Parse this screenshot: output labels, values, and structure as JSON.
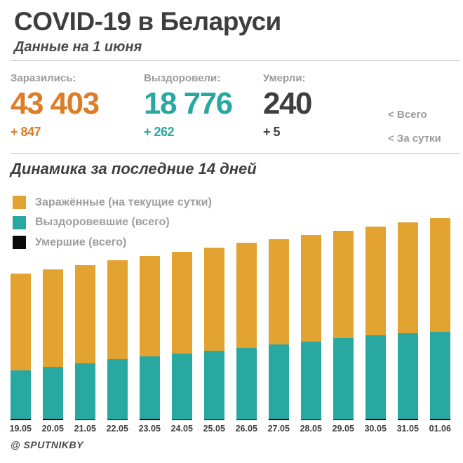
{
  "header": {
    "title": "COVID-19 в Беларуси",
    "subtitle": "Данные на 1 июня"
  },
  "stats": {
    "infected": {
      "label": "Заразились:",
      "total": "43 403",
      "delta": "+ 847",
      "color": "#dd7d28"
    },
    "recovered": {
      "label": "Выздоровели:",
      "total": "18 776",
      "delta": "+ 262",
      "color": "#28a8a1"
    },
    "died": {
      "label": "Умерли:",
      "total": "240",
      "delta": "+ 5",
      "color": "#3f3f3f"
    },
    "row_hints": {
      "total": "<  Всего",
      "daily": "<  За сутки"
    }
  },
  "section": {
    "title": "Динамика за последние 14 дней"
  },
  "legend": [
    {
      "label": "Заражённые (на текущие сутки)",
      "color": "#e2a331"
    },
    {
      "label": "Выздоровевшие (всего)",
      "color": "#28a8a1"
    },
    {
      "label": "Умершие (всего)",
      "color": "#0a0a0a"
    }
  ],
  "chart_data": {
    "type": "bar",
    "subtype": "stacked",
    "title": "Динамика за последние 14 дней",
    "xlabel": "",
    "ylabel": "",
    "grid": false,
    "legend_position": "top-left",
    "ylim": [
      0,
      43403
    ],
    "categories": [
      "19.05",
      "20.05",
      "21.05",
      "22.05",
      "23.05",
      "24.05",
      "25.05",
      "26.05",
      "27.05",
      "28.05",
      "29.05",
      "30.05",
      "31.05",
      "01.06"
    ],
    "series": [
      {
        "name": "Заражённые (на текущие сутки)",
        "color": "#e2a331",
        "values": [
          31508,
          32426,
          33371,
          34303,
          35244,
          36198,
          37144,
          38059,
          38956,
          39858,
          40764,
          41658,
          42556,
          43403
        ]
      },
      {
        "name": "Выздоровевшие (всего)",
        "color": "#28a8a1",
        "values": [
          10431,
          11250,
          12000,
          12900,
          13510,
          14150,
          14650,
          15250,
          15990,
          16585,
          17390,
          17990,
          18514,
          18776
        ]
      },
      {
        "name": "Умершие (всего)",
        "color": "#0a0a0a",
        "values": [
          175,
          179,
          185,
          190,
          194,
          199,
          204,
          208,
          214,
          219,
          224,
          229,
          235,
          240
        ]
      }
    ]
  },
  "footer": {
    "credit": "@ SPUTNIKBY"
  }
}
